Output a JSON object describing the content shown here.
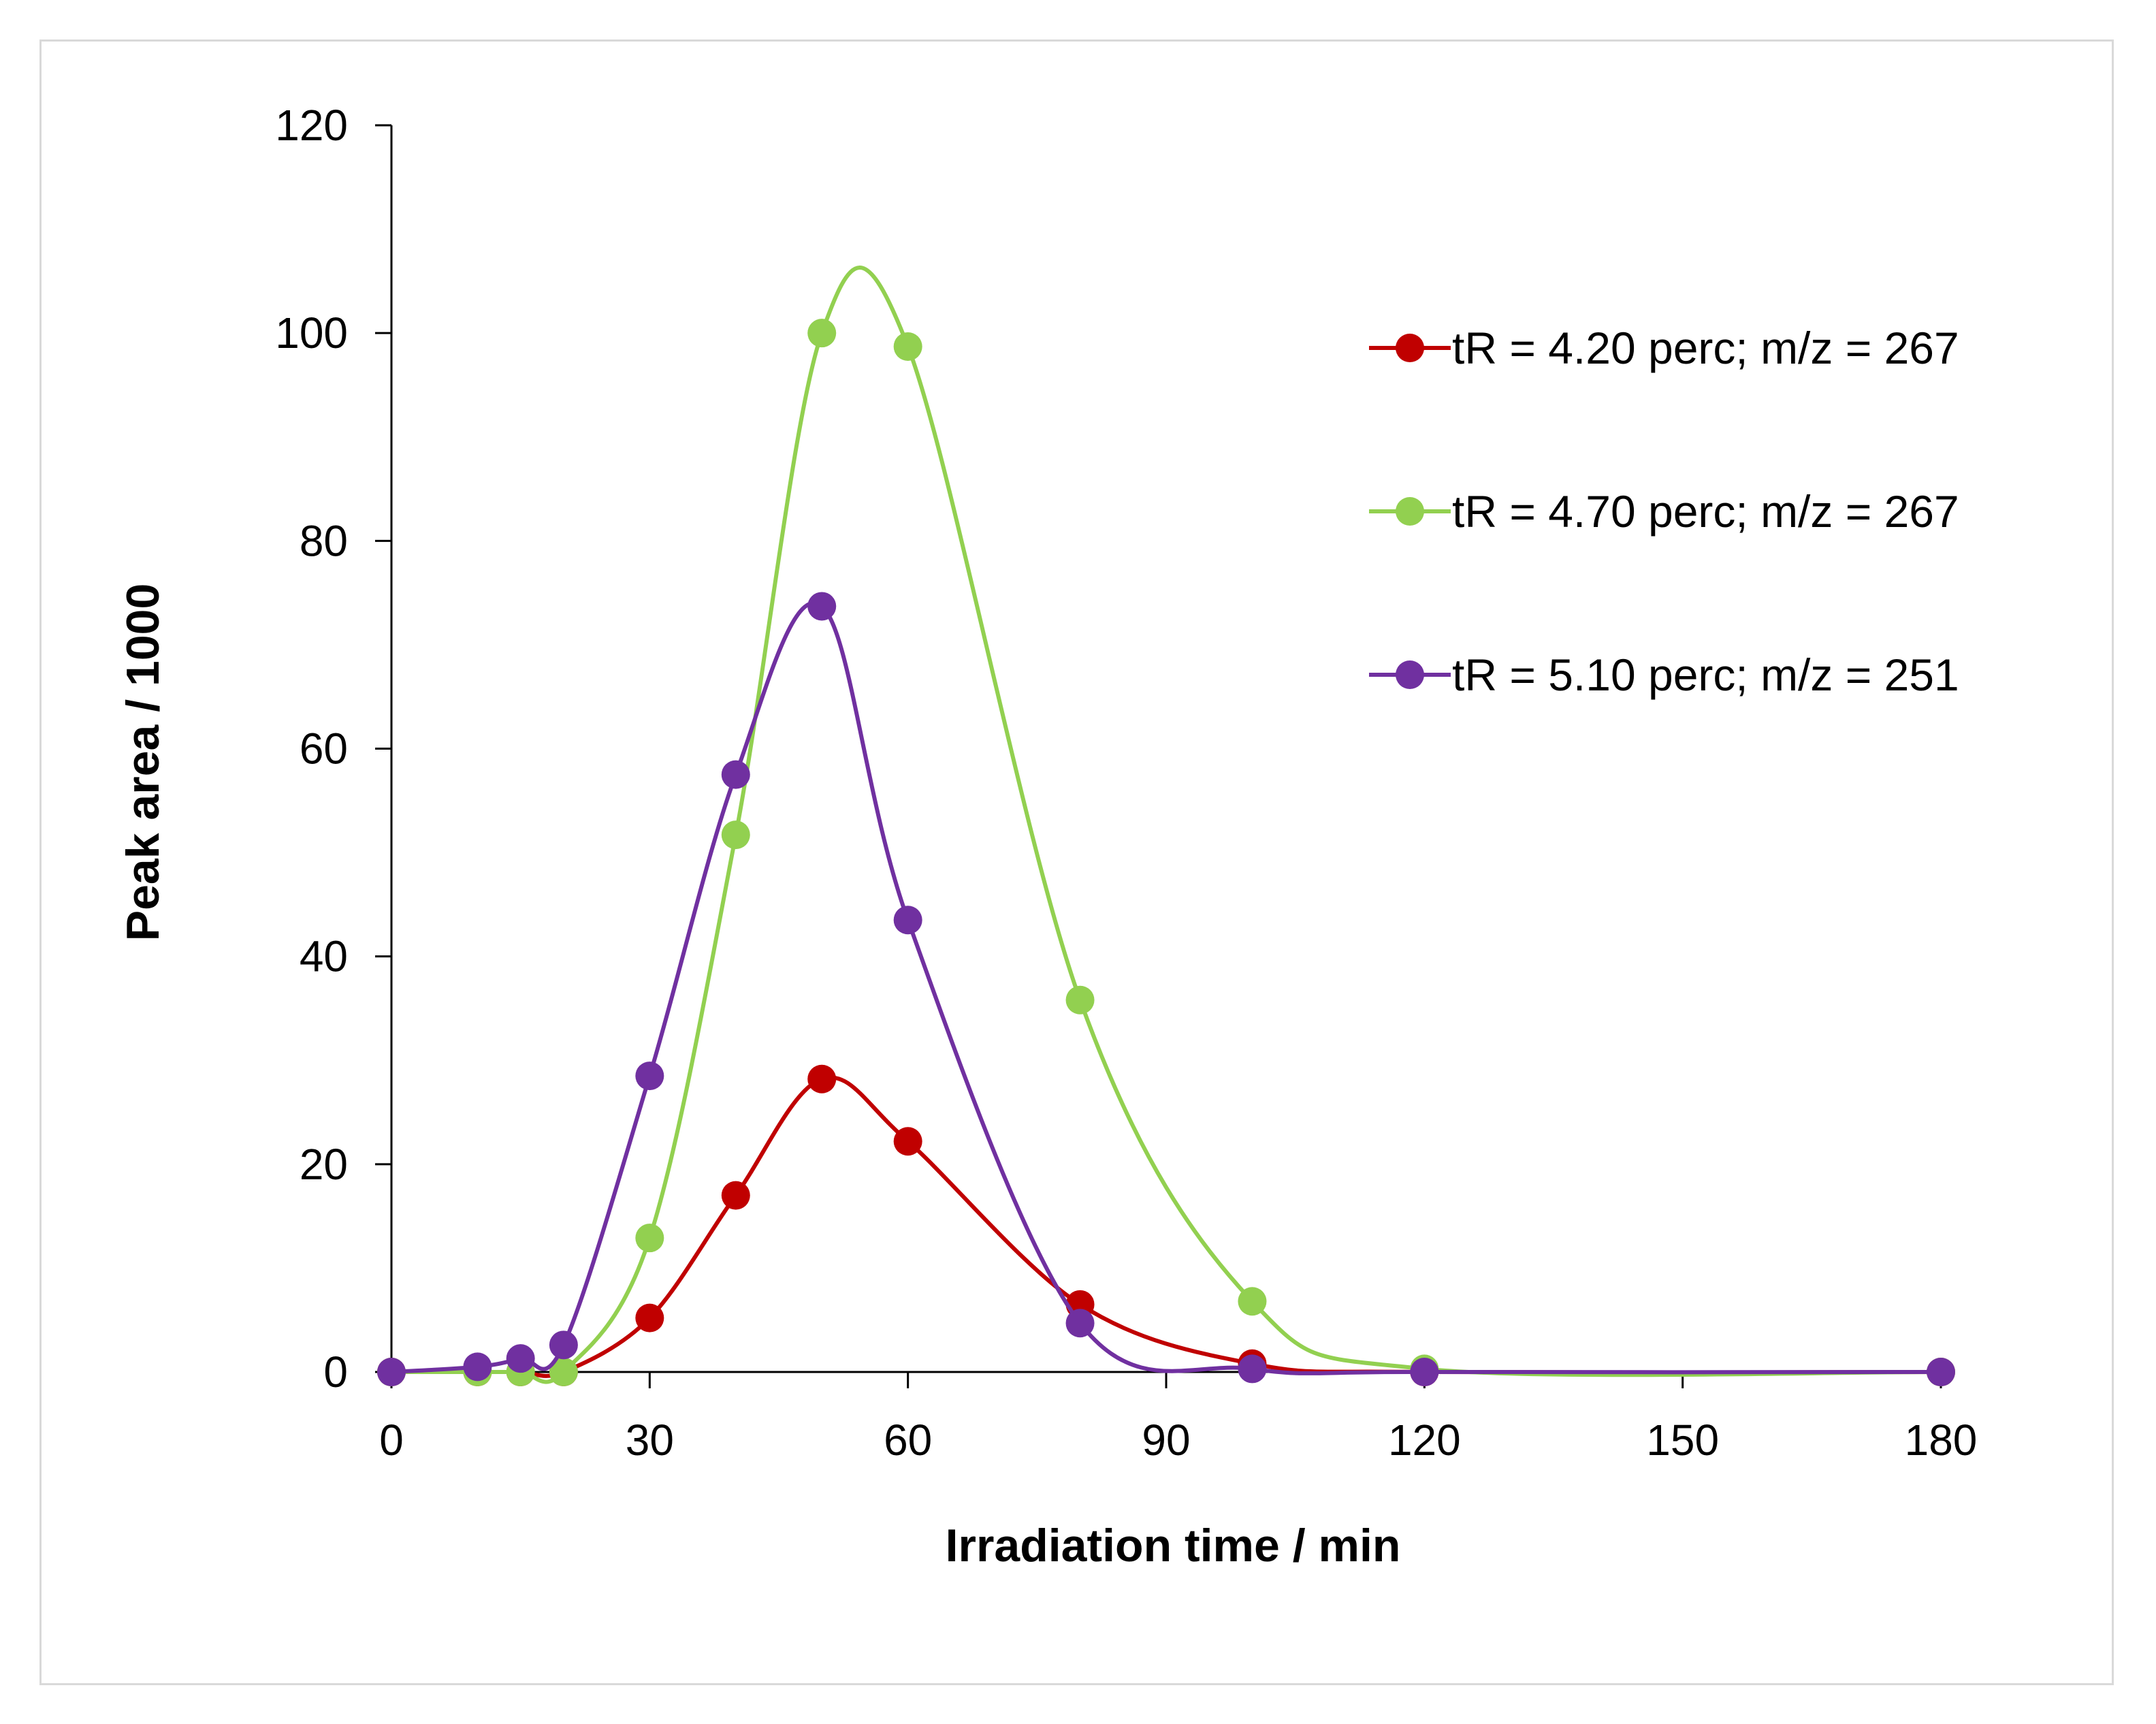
{
  "chart_data": {
    "type": "line",
    "title": "",
    "xlabel": "Irradiation time / min",
    "ylabel": "Peak area / 1000",
    "xlim": [
      0,
      180
    ],
    "ylim": [
      0,
      120
    ],
    "xticks": [
      0,
      30,
      60,
      90,
      120,
      150,
      180
    ],
    "yticks": [
      0,
      20,
      40,
      60,
      80,
      100,
      120
    ],
    "xtick_labels": [
      "0",
      "30",
      "60",
      "90",
      "120",
      "150",
      "180"
    ],
    "ytick_labels": [
      "0",
      "20",
      "40",
      "60",
      "80",
      "100",
      "120"
    ],
    "grid": false,
    "legend_position": "right",
    "smooth": true,
    "series": [
      {
        "name": "tR = 4.20 perc; m/z = 267",
        "color": "#c00000",
        "x": [
          0,
          10,
          15,
          20,
          30,
          40,
          50,
          60,
          80,
          100,
          120,
          180
        ],
        "y": [
          0,
          0,
          0,
          0,
          5.2,
          17,
          28.2,
          22.2,
          6.5,
          0.8,
          0,
          0
        ]
      },
      {
        "name": "tR = 4.70 perc; m/z = 267",
        "color": "#92d050",
        "x": [
          0,
          10,
          15,
          20,
          30,
          40,
          50,
          60,
          80,
          100,
          120,
          180
        ],
        "y": [
          0,
          0,
          0,
          0,
          12.9,
          51.7,
          100,
          98.7,
          35.8,
          6.8,
          0.3,
          0
        ]
      },
      {
        "name": "tR = 5.10 perc; m/z = 251",
        "color": "#7030a0",
        "x": [
          0,
          10,
          15,
          20,
          30,
          40,
          50,
          60,
          80,
          100,
          120,
          180
        ],
        "y": [
          0,
          0.5,
          1.3,
          2.6,
          28.5,
          57.5,
          73.7,
          43.5,
          4.7,
          0.3,
          0,
          0
        ]
      }
    ]
  }
}
